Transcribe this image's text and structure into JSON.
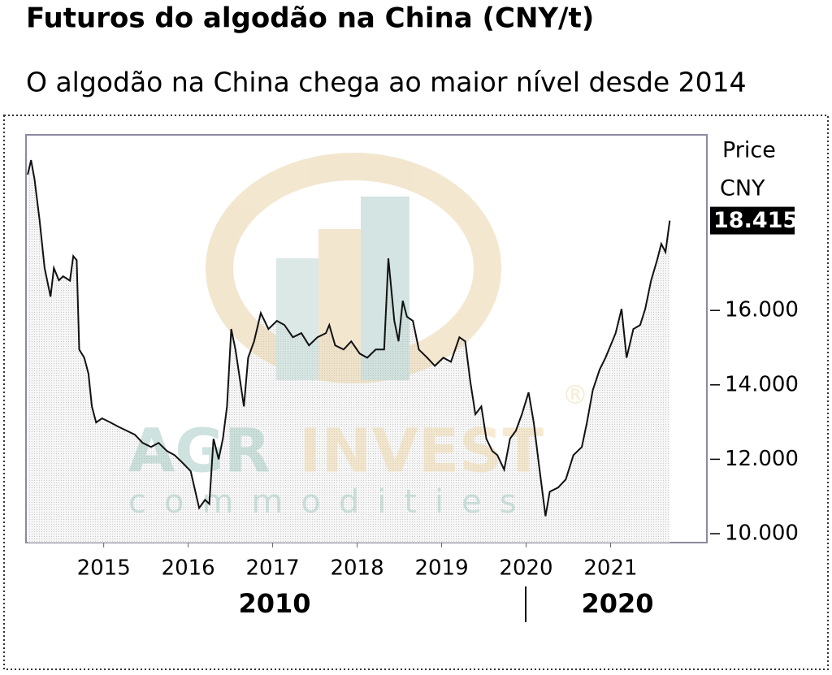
{
  "chart_data": {
    "type": "area",
    "title": "Futuros do algodão na China (CNY/t)",
    "subtitle": "O algodão na China chega ao maior nível desde 2014",
    "y_axis_label": [
      "Price",
      "CNY"
    ],
    "last_price": {
      "value": 18415,
      "label": "18.415"
    },
    "period_labels": [
      "2010",
      "2020"
    ],
    "watermark": {
      "brand_a": "AGR",
      "brand_b": "INVEST",
      "tagline": "commodities",
      "mark": "®"
    },
    "color": "#111111",
    "x": [
      2014.1,
      2014.14,
      2014.18,
      2014.24,
      2014.3,
      2014.37,
      2014.41,
      2014.47,
      2014.52,
      2014.6,
      2014.64,
      2014.68,
      2014.71,
      2014.77,
      2014.82,
      2014.86,
      2014.91,
      2014.98,
      2015.08,
      2015.17,
      2015.27,
      2015.37,
      2015.46,
      2015.56,
      2015.65,
      2015.75,
      2015.84,
      2015.94,
      2016.03,
      2016.13,
      2016.2,
      2016.25,
      2016.3,
      2016.36,
      2016.41,
      2016.46,
      2016.51,
      2016.56,
      2016.61,
      2016.66,
      2016.71,
      2016.78,
      2016.86,
      2016.95,
      2017.05,
      2017.14,
      2017.24,
      2017.34,
      2017.43,
      2017.53,
      2017.63,
      2017.67,
      2017.74,
      2017.84,
      2017.93,
      2018.03,
      2018.12,
      2018.22,
      2018.32,
      2018.37,
      2018.44,
      2018.49,
      2018.54,
      2018.59,
      2018.66,
      2018.73,
      2018.83,
      2018.92,
      2019.02,
      2019.11,
      2019.21,
      2019.28,
      2019.34,
      2019.4,
      2019.47,
      2019.53,
      2019.6,
      2019.66,
      2019.74,
      2019.81,
      2019.88,
      2019.95,
      2020.03,
      2020.09,
      2020.15,
      2020.23,
      2020.28,
      2020.38,
      2020.47,
      2020.56,
      2020.66,
      2020.72,
      2020.79,
      2020.87,
      2020.94,
      2021.0,
      2021.06,
      2021.13,
      2021.19,
      2021.27,
      2021.35,
      2021.41,
      2021.48,
      2021.55,
      2021.6,
      2021.65,
      2021.7
    ],
    "values": [
      19650,
      20040,
      19540,
      18450,
      17140,
      16370,
      17140,
      16810,
      16920,
      16800,
      17460,
      17350,
      14950,
      14730,
      14300,
      13420,
      12990,
      13100,
      12990,
      12880,
      12770,
      12660,
      12440,
      12330,
      12440,
      12220,
      12110,
      11890,
      11680,
      10690,
      10910,
      10800,
      12550,
      12000,
      12550,
      13420,
      15500,
      14950,
      14190,
      13420,
      14730,
      15170,
      15930,
      15500,
      15720,
      15610,
      15280,
      15390,
      15060,
      15280,
      15390,
      15610,
      15060,
      14950,
      15170,
      14840,
      14730,
      14950,
      14950,
      17400,
      15720,
      15170,
      16260,
      15830,
      15720,
      14950,
      14730,
      14510,
      14730,
      14620,
      15280,
      15170,
      14080,
      13210,
      13420,
      12550,
      12220,
      12110,
      11720,
      12550,
      12770,
      13210,
      13800,
      12990,
      11890,
      10470,
      11130,
      11240,
      11460,
      12110,
      12330,
      12990,
      13860,
      14410,
      14730,
      15060,
      15390,
      16040,
      14730,
      15500,
      15610,
      16040,
      16810,
      17350,
      17790,
      17570,
      18415
    ],
    "xlim": [
      2014.08,
      2022.14
    ],
    "xticks": [
      2015,
      2016,
      2017,
      2018,
      2019,
      2020,
      2021
    ],
    "ylim": [
      9760,
      20720
    ],
    "yticks": [
      {
        "value": 10000,
        "label": "10.000"
      },
      {
        "value": 12000,
        "label": "12.000"
      },
      {
        "value": 14000,
        "label": "14.000"
      },
      {
        "value": 16000,
        "label": "16.000"
      }
    ]
  }
}
